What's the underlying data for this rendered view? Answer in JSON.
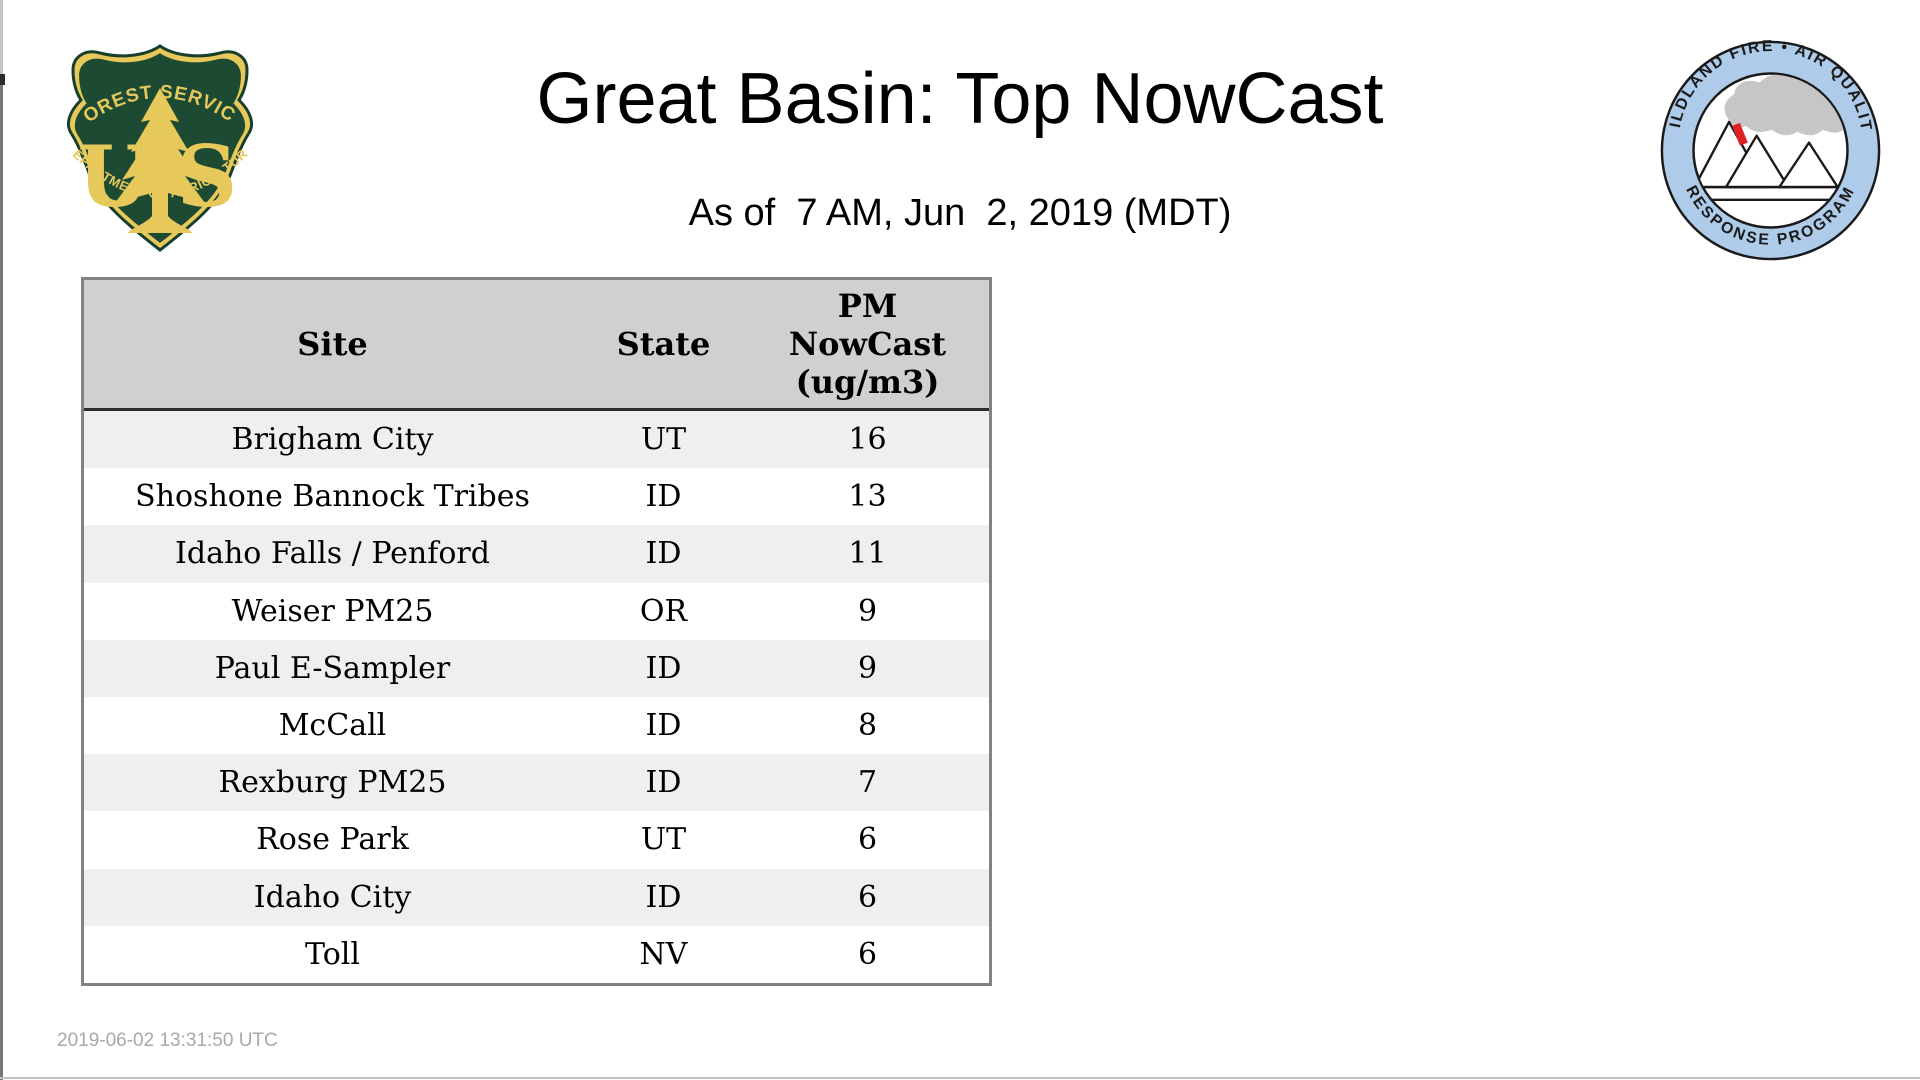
{
  "page": {
    "title": "Great Basin: Top NowCast",
    "subtitle": "As of  7 AM, Jun  2, 2019 (MDT)",
    "timestamp": "2019-06-02 13:31:50 UTC"
  },
  "logos": {
    "forest_service": {
      "icon": "us-forest-service-shield-icon",
      "arc_top": "FOREST SERVICE",
      "letter_u": "U",
      "letter_s": "S",
      "arc_bottom": "DEPARTMENT OF AGRICULTURE",
      "colors": {
        "green": "#1d4a33",
        "gold": "#e7c95b"
      }
    },
    "air_quality": {
      "icon": "wildland-fire-air-quality-badge-icon",
      "arc_top": "WILDLAND FIRE • AIR QUALITY",
      "arc_bottom": "RESPONSE PROGRAM",
      "colors": {
        "ring_blue": "#aecbe9",
        "smoke_gray": "#c6c6c6",
        "flame_red": "#dd2222"
      }
    }
  },
  "table": {
    "header": {
      "site": "Site",
      "state": "State",
      "pm_lines": [
        "PM",
        "NowCast",
        "(ug/m3)"
      ]
    },
    "rows": [
      {
        "site": "Brigham City",
        "state": "UT",
        "value": "16"
      },
      {
        "site": "Shoshone Bannock Tribes",
        "state": "ID",
        "value": "13"
      },
      {
        "site": "Idaho Falls / Penford",
        "state": "ID",
        "value": "11"
      },
      {
        "site": "Weiser PM25",
        "state": "OR",
        "value": "9"
      },
      {
        "site": "Paul E-Sampler",
        "state": "ID",
        "value": "9"
      },
      {
        "site": "McCall",
        "state": "ID",
        "value": "8"
      },
      {
        "site": "Rexburg PM25",
        "state": "ID",
        "value": "7"
      },
      {
        "site": "Rose Park",
        "state": "UT",
        "value": "6"
      },
      {
        "site": "Idaho City",
        "state": "ID",
        "value": "6"
      },
      {
        "site": "Toll",
        "state": "NV",
        "value": "6"
      }
    ],
    "colors": {
      "header_bg": "#d0d0d0",
      "stripe_bg": "#efefef",
      "border_outer": "#828282",
      "border_header": "#2d2d2d"
    }
  }
}
